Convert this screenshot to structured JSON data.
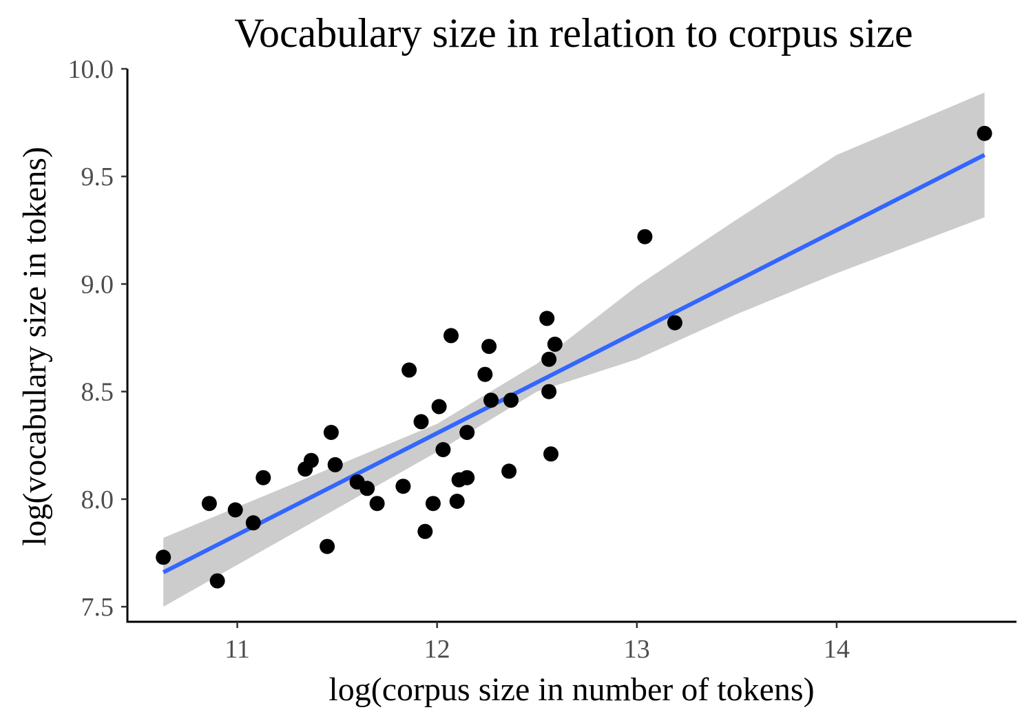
{
  "chart_data": {
    "type": "scatter",
    "title": "Vocabulary size in relation to corpus size",
    "xlabel": "log(corpus size in number of tokens)",
    "ylabel": "log(vocabulary size in tokens)",
    "xlim": [
      10.45,
      14.9
    ],
    "ylim": [
      7.43,
      10.0
    ],
    "x_ticks": [
      11,
      12,
      13,
      14
    ],
    "x_tick_labels": [
      "11",
      "12",
      "13",
      "14"
    ],
    "y_ticks": [
      7.5,
      8.0,
      8.5,
      9.0,
      9.5,
      10.0
    ],
    "y_tick_labels": [
      "7.5",
      "8.0",
      "8.5",
      "9.0",
      "9.5",
      "10.0"
    ],
    "grid": false,
    "legend": "none",
    "points": [
      {
        "x": 10.63,
        "y": 7.73
      },
      {
        "x": 10.86,
        "y": 7.98
      },
      {
        "x": 10.9,
        "y": 7.62
      },
      {
        "x": 10.99,
        "y": 7.95
      },
      {
        "x": 11.08,
        "y": 7.89
      },
      {
        "x": 11.13,
        "y": 8.1
      },
      {
        "x": 11.34,
        "y": 8.14
      },
      {
        "x": 11.37,
        "y": 8.18
      },
      {
        "x": 11.45,
        "y": 7.78
      },
      {
        "x": 11.47,
        "y": 8.31
      },
      {
        "x": 11.49,
        "y": 8.16
      },
      {
        "x": 11.6,
        "y": 8.08
      },
      {
        "x": 11.65,
        "y": 8.05
      },
      {
        "x": 11.7,
        "y": 7.98
      },
      {
        "x": 11.83,
        "y": 8.06
      },
      {
        "x": 11.86,
        "y": 8.6
      },
      {
        "x": 11.92,
        "y": 8.36
      },
      {
        "x": 11.94,
        "y": 7.85
      },
      {
        "x": 11.98,
        "y": 7.98
      },
      {
        "x": 12.01,
        "y": 8.43
      },
      {
        "x": 12.03,
        "y": 8.23
      },
      {
        "x": 12.07,
        "y": 8.76
      },
      {
        "x": 12.1,
        "y": 7.99
      },
      {
        "x": 12.11,
        "y": 8.09
      },
      {
        "x": 12.15,
        "y": 8.1
      },
      {
        "x": 12.15,
        "y": 8.31
      },
      {
        "x": 12.24,
        "y": 8.58
      },
      {
        "x": 12.26,
        "y": 8.71
      },
      {
        "x": 12.27,
        "y": 8.46
      },
      {
        "x": 12.36,
        "y": 8.13
      },
      {
        "x": 12.37,
        "y": 8.46
      },
      {
        "x": 12.55,
        "y": 8.84
      },
      {
        "x": 12.56,
        "y": 8.65
      },
      {
        "x": 12.56,
        "y": 8.5
      },
      {
        "x": 12.57,
        "y": 8.21
      },
      {
        "x": 12.59,
        "y": 8.72
      },
      {
        "x": 13.04,
        "y": 9.22
      },
      {
        "x": 13.19,
        "y": 8.82
      },
      {
        "x": 14.74,
        "y": 9.7
      }
    ],
    "fit": {
      "method": "linear",
      "color": "#3366ff",
      "band_color": "#cccccc",
      "line": [
        {
          "x": 10.63,
          "y": 7.66
        },
        {
          "x": 14.74,
          "y": 9.6
        }
      ],
      "band_upper": [
        {
          "x": 10.63,
          "y": 7.82
        },
        {
          "x": 12.0,
          "y": 8.35
        },
        {
          "x": 12.5,
          "y": 8.63
        },
        {
          "x": 13.0,
          "y": 8.99
        },
        {
          "x": 13.5,
          "y": 9.3
        },
        {
          "x": 14.0,
          "y": 9.6
        },
        {
          "x": 14.74,
          "y": 9.89
        }
      ],
      "band_lower": [
        {
          "x": 10.63,
          "y": 7.5
        },
        {
          "x": 12.0,
          "y": 8.22
        },
        {
          "x": 12.5,
          "y": 8.5
        },
        {
          "x": 13.0,
          "y": 8.65
        },
        {
          "x": 13.5,
          "y": 8.86
        },
        {
          "x": 14.0,
          "y": 9.05
        },
        {
          "x": 14.74,
          "y": 9.31
        }
      ]
    },
    "point_color": "#000000"
  }
}
